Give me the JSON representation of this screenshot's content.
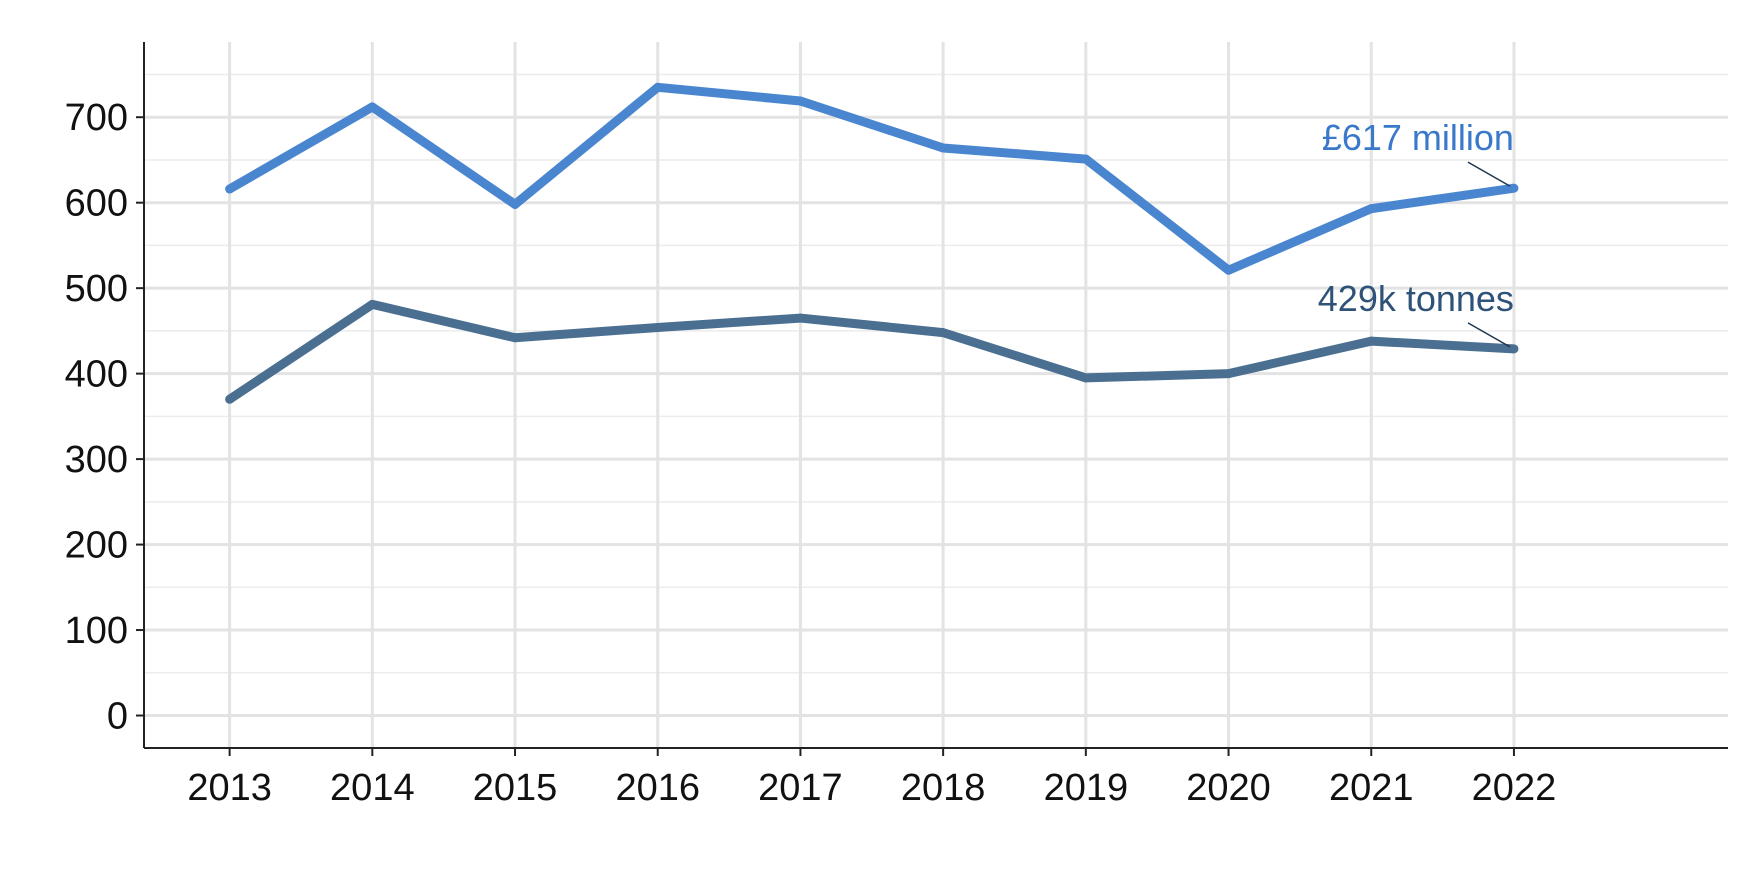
{
  "chart_data": {
    "type": "line",
    "title": "",
    "xlabel": "",
    "ylabel": "",
    "x": [
      2013,
      2014,
      2015,
      2016,
      2017,
      2018,
      2019,
      2020,
      2021,
      2022
    ],
    "xlim": [
      2012.4,
      2023.5
    ],
    "ylim": [
      -38,
      788
    ],
    "y_ticks": [
      0,
      100,
      200,
      300,
      400,
      500,
      600,
      700
    ],
    "y_minor_ticks": [
      50,
      150,
      250,
      350,
      450,
      550,
      650,
      750
    ],
    "grid": true,
    "legend": "none",
    "series": [
      {
        "values": [
          616,
          712,
          598,
          735,
          719,
          664,
          651,
          521,
          593,
          617
        ],
        "color": "#4a86cf",
        "end_label": "£617 million"
      },
      {
        "values": [
          370,
          481,
          442,
          454,
          465,
          448,
          395,
          400,
          438,
          429
        ],
        "color": "#4a6f91",
        "end_label": "429k tonnes"
      }
    ]
  }
}
